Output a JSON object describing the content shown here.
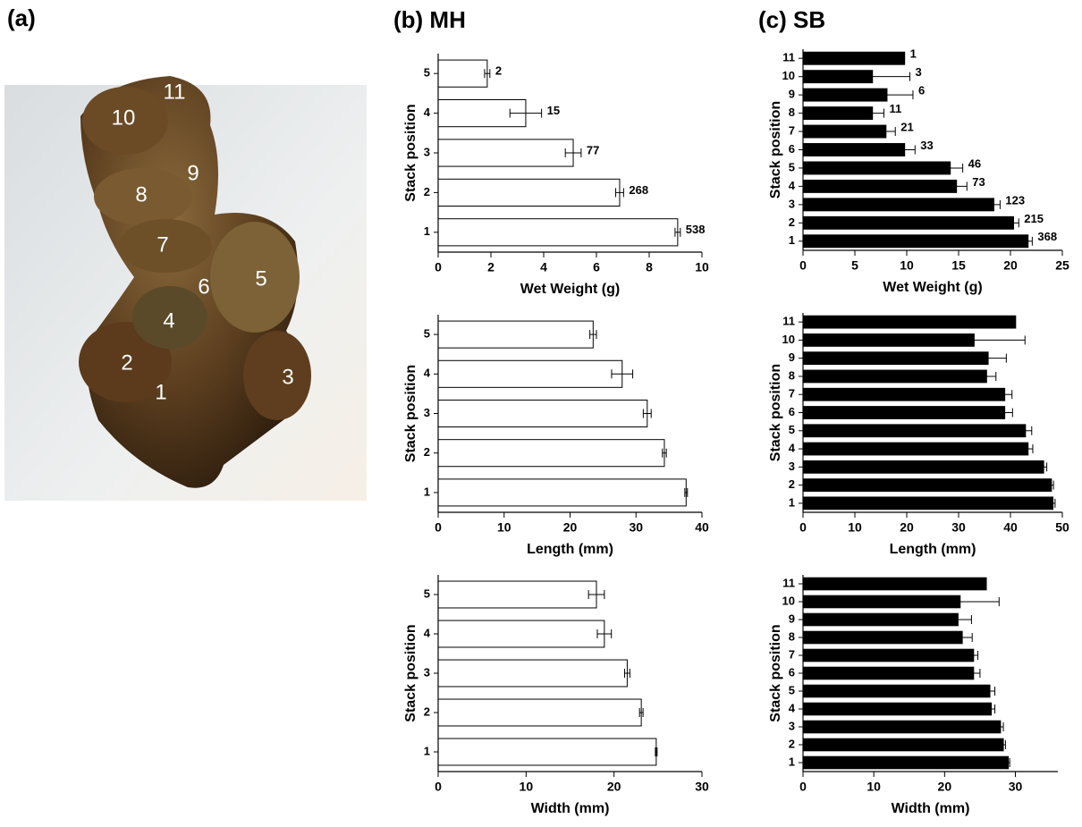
{
  "panels": {
    "a": "(a)",
    "b": "(b) MH",
    "c": "(c) SB"
  },
  "photo": {
    "labels": [
      "1",
      "2",
      "3",
      "4",
      "5",
      "6",
      "7",
      "8",
      "9",
      "10",
      "11"
    ]
  },
  "chart_data": [
    {
      "type": "bar",
      "orientation": "horizontal",
      "ylabel": "Stack position",
      "xlabel": "Wet Weight (g)",
      "color": "#ffffff",
      "categories": [
        "1",
        "2",
        "3",
        "4",
        "5"
      ],
      "values": [
        9.08,
        6.88,
        5.12,
        3.32,
        1.86
      ],
      "errors": [
        0.1,
        0.15,
        0.3,
        0.6,
        0.1
      ],
      "n": [
        538,
        268,
        77,
        15,
        2
      ],
      "xlim": [
        0,
        10
      ],
      "xticks": [
        0,
        2,
        4,
        6,
        8,
        10
      ]
    },
    {
      "type": "bar",
      "orientation": "horizontal",
      "ylabel": "Stack position",
      "xlabel": "Length (mm)",
      "color": "#ffffff",
      "categories": [
        "1",
        "2",
        "3",
        "4",
        "5"
      ],
      "values": [
        37.6,
        34.3,
        31.7,
        27.9,
        23.5
      ],
      "errors": [
        0.2,
        0.3,
        0.6,
        1.6,
        0.5
      ],
      "xlim": [
        0,
        40
      ],
      "xticks": [
        0,
        10,
        20,
        30,
        40
      ]
    },
    {
      "type": "bar",
      "orientation": "horizontal",
      "ylabel": "Stack position",
      "xlabel": "Width (mm)",
      "color": "#ffffff",
      "categories": [
        "1",
        "2",
        "3",
        "4",
        "5"
      ],
      "values": [
        24.8,
        23.1,
        21.5,
        18.9,
        18.0
      ],
      "errors": [
        0.1,
        0.2,
        0.3,
        0.8,
        0.9
      ],
      "xlim": [
        0,
        30
      ],
      "xticks": [
        0,
        10,
        20,
        30
      ]
    },
    {
      "type": "bar",
      "orientation": "horizontal",
      "ylabel": "Stack position",
      "xlabel": "Wet Weight (g)",
      "color": "#000000",
      "categories": [
        "1",
        "2",
        "3",
        "4",
        "5",
        "6",
        "7",
        "8",
        "9",
        "10",
        "11"
      ],
      "values": [
        21.7,
        20.3,
        18.4,
        14.8,
        14.2,
        9.8,
        8.0,
        6.7,
        8.1,
        6.7,
        9.8
      ],
      "errors": [
        0.4,
        0.5,
        0.6,
        1.0,
        1.2,
        1.0,
        0.9,
        1.1,
        2.5,
        3.6,
        0
      ],
      "n": [
        368,
        215,
        123,
        73,
        46,
        33,
        21,
        11,
        6,
        3,
        1
      ],
      "xlim": [
        0,
        25
      ],
      "xticks": [
        0,
        5,
        10,
        15,
        20,
        25
      ]
    },
    {
      "type": "bar",
      "orientation": "horizontal",
      "ylabel": "Stack position",
      "xlabel": "Length (mm)",
      "color": "#000000",
      "categories": [
        "1",
        "2",
        "3",
        "4",
        "5",
        "6",
        "7",
        "8",
        "9",
        "10",
        "11"
      ],
      "values": [
        48.2,
        47.9,
        46.4,
        43.4,
        42.9,
        38.9,
        38.9,
        35.4,
        35.7,
        33.0,
        41.0
      ],
      "errors": [
        0.4,
        0.4,
        0.6,
        0.9,
        1.2,
        1.5,
        1.4,
        1.8,
        3.5,
        9.8,
        0
      ],
      "xlim": [
        0,
        50
      ],
      "xticks": [
        0,
        10,
        20,
        30,
        40,
        50
      ]
    },
    {
      "type": "bar",
      "orientation": "horizontal",
      "ylabel": "Stack position",
      "xlabel": "Width (mm)",
      "color": "#000000",
      "categories": [
        "1",
        "2",
        "3",
        "4",
        "5",
        "6",
        "7",
        "8",
        "9",
        "10",
        "11"
      ],
      "values": [
        29.0,
        28.3,
        27.9,
        26.6,
        26.4,
        24.1,
        24.1,
        22.5,
        21.9,
        22.2,
        25.9
      ],
      "errors": [
        0.2,
        0.3,
        0.4,
        0.5,
        0.7,
        0.9,
        0.6,
        1.4,
        1.9,
        5.5,
        0
      ],
      "xlim": [
        0,
        36
      ],
      "xticks": [
        0,
        10,
        20,
        30
      ]
    }
  ]
}
